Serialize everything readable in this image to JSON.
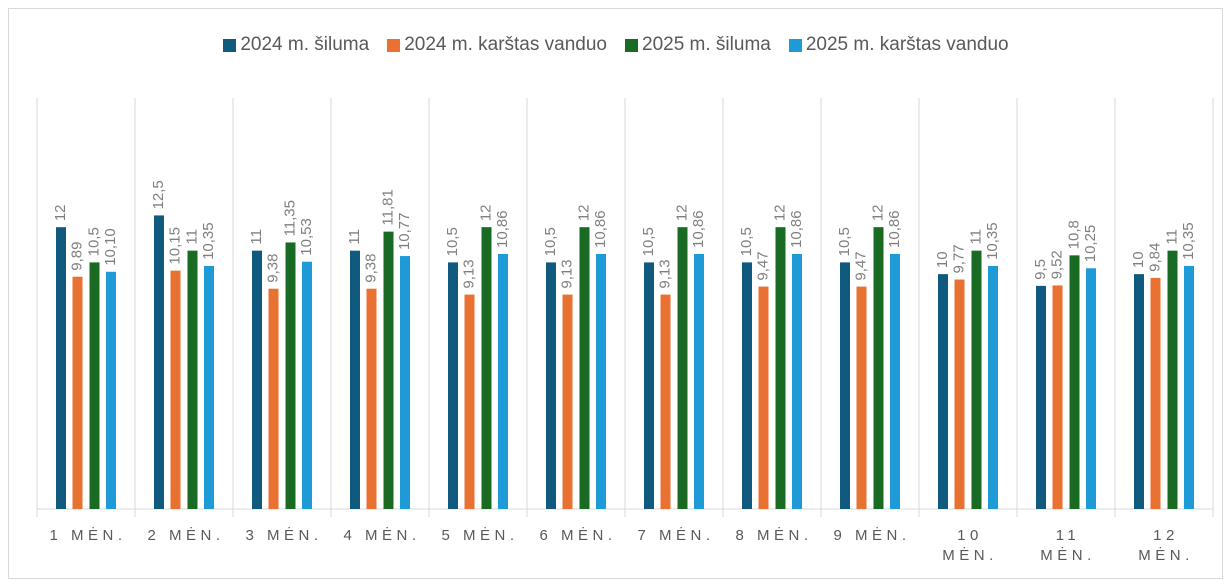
{
  "chart_data": {
    "type": "bar",
    "categories": [
      "1 MĖN.",
      "2 MĖN.",
      "3 MĖN.",
      "4 MĖN.",
      "5 MĖN.",
      "6 MĖN.",
      "7 MĖN.",
      "8 MĖN.",
      "9 MĖN.",
      "10 MĖN.",
      "11 MĖN.",
      "12 MĖN."
    ],
    "series": [
      {
        "name": "2024 m. šiluma",
        "color": "#0f5a7e",
        "values": [
          12,
          12.5,
          11,
          11,
          10.5,
          10.5,
          10.5,
          10.5,
          10.5,
          10,
          9.5,
          10
        ],
        "value_labels": [
          "12",
          "12,5",
          "11",
          "11",
          "10,5",
          "10,5",
          "10,5",
          "10,5",
          "10,5",
          "10",
          "9,5",
          "10"
        ]
      },
      {
        "name": "2024 m. karštas vanduo",
        "color": "#e97132",
        "values": [
          9.89,
          10.15,
          9.38,
          9.38,
          9.13,
          9.13,
          9.13,
          9.47,
          9.47,
          9.77,
          9.52,
          9.84
        ],
        "value_labels": [
          "9,89",
          "10,15",
          "9,38",
          "9,38",
          "9,13",
          "9,13",
          "9,13",
          "9,47",
          "9,47",
          "9,77",
          "9,52",
          "9,84"
        ]
      },
      {
        "name": "2025 m. šiluma",
        "color": "#196b24",
        "values": [
          10.5,
          11,
          11.35,
          11.81,
          12,
          12,
          12,
          12,
          12,
          11,
          10.8,
          11
        ],
        "value_labels": [
          "10,5",
          "11",
          "11,35",
          "11,81",
          "12",
          "12",
          "12",
          "12",
          "12",
          "11",
          "10,8",
          "11"
        ]
      },
      {
        "name": "2025 m. karštas vanduo",
        "color": "#1e9ad6",
        "values": [
          10.1,
          10.35,
          10.53,
          10.77,
          10.86,
          10.86,
          10.86,
          10.86,
          10.86,
          10.35,
          10.25,
          10.35
        ],
        "value_labels": [
          "10,10",
          "10,35",
          "10,53",
          "10,77",
          "10,86",
          "10,86",
          "10,86",
          "10,86",
          "10,86",
          "10,35",
          "10,25",
          "10,35"
        ]
      }
    ],
    "ylim": [
      0,
      17.5
    ],
    "legend": "top",
    "grid": false
  }
}
